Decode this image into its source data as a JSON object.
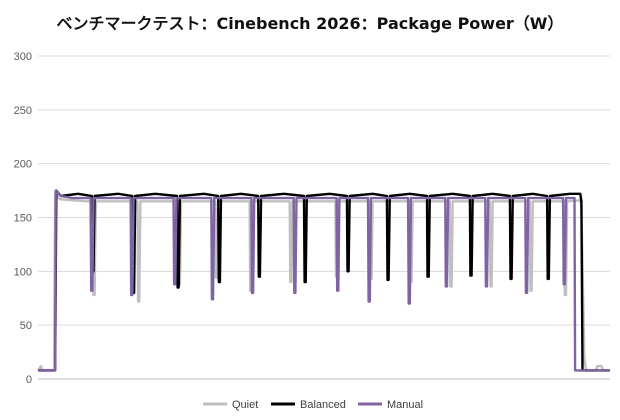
{
  "chart_data": {
    "type": "line",
    "title": "ベンチマークテスト：Cinebench 2026：Package Power（W）",
    "xlabel": "",
    "ylabel": "",
    "ylim": [
      0,
      300
    ],
    "yticks": [
      0,
      50,
      100,
      150,
      200,
      250,
      300
    ],
    "grid": true,
    "legend_position": "bottom",
    "x_range": [
      0,
      1000
    ],
    "series": [
      {
        "name": "Quiet",
        "color": "#bfbfbf",
        "points": [
          [
            0,
            8
          ],
          [
            5,
            12
          ],
          [
            8,
            8
          ],
          [
            28,
            8
          ],
          [
            30,
            172
          ],
          [
            38,
            167
          ],
          [
            60,
            166
          ],
          [
            85,
            165
          ],
          [
            96,
            165
          ],
          [
            97,
            78
          ],
          [
            99,
            78
          ],
          [
            101,
            165
          ],
          [
            135,
            165
          ],
          [
            170,
            165
          ],
          [
            174,
            165
          ],
          [
            175,
            72
          ],
          [
            177,
            72
          ],
          [
            179,
            165
          ],
          [
            215,
            165
          ],
          [
            245,
            165
          ],
          [
            246,
            88
          ],
          [
            248,
            88
          ],
          [
            250,
            165
          ],
          [
            290,
            165
          ],
          [
            310,
            165
          ],
          [
            311,
            94
          ],
          [
            313,
            94
          ],
          [
            315,
            165
          ],
          [
            350,
            165
          ],
          [
            370,
            165
          ],
          [
            371,
            82
          ],
          [
            373,
            82
          ],
          [
            375,
            165
          ],
          [
            405,
            165
          ],
          [
            440,
            165
          ],
          [
            441,
            90
          ],
          [
            443,
            90
          ],
          [
            445,
            165
          ],
          [
            485,
            165
          ],
          [
            520,
            165
          ],
          [
            521,
            95
          ],
          [
            523,
            95
          ],
          [
            525,
            165
          ],
          [
            555,
            165
          ],
          [
            580,
            165
          ],
          [
            581,
            93
          ],
          [
            583,
            93
          ],
          [
            585,
            165
          ],
          [
            625,
            165
          ],
          [
            650,
            165
          ],
          [
            651,
            90
          ],
          [
            653,
            90
          ],
          [
            655,
            165
          ],
          [
            690,
            165
          ],
          [
            720,
            165
          ],
          [
            721,
            86
          ],
          [
            723,
            86
          ],
          [
            725,
            165
          ],
          [
            765,
            165
          ],
          [
            790,
            165
          ],
          [
            791,
            86
          ],
          [
            793,
            86
          ],
          [
            795,
            165
          ],
          [
            830,
            165
          ],
          [
            860,
            165
          ],
          [
            861,
            82
          ],
          [
            863,
            82
          ],
          [
            865,
            165
          ],
          [
            895,
            165
          ],
          [
            920,
            165
          ],
          [
            921,
            78
          ],
          [
            923,
            78
          ],
          [
            925,
            165
          ],
          [
            948,
            166
          ],
          [
            950,
            160
          ],
          [
            955,
            20
          ],
          [
            958,
            8
          ],
          [
            975,
            8
          ],
          [
            978,
            12
          ],
          [
            985,
            12
          ],
          [
            988,
            8
          ],
          [
            1000,
            8
          ]
        ]
      },
      {
        "name": "Balanced",
        "color": "#000000",
        "points": [
          [
            0,
            8
          ],
          [
            30,
            8
          ],
          [
            32,
            175
          ],
          [
            40,
            170
          ],
          [
            70,
            172
          ],
          [
            94,
            170
          ],
          [
            95,
            100
          ],
          [
            97,
            100
          ],
          [
            99,
            170
          ],
          [
            140,
            172
          ],
          [
            165,
            170
          ],
          [
            166,
            80
          ],
          [
            168,
            80
          ],
          [
            170,
            170
          ],
          [
            205,
            172
          ],
          [
            243,
            170
          ],
          [
            244,
            85
          ],
          [
            246,
            85
          ],
          [
            248,
            170
          ],
          [
            290,
            172
          ],
          [
            315,
            170
          ],
          [
            316,
            90
          ],
          [
            318,
            90
          ],
          [
            320,
            170
          ],
          [
            355,
            172
          ],
          [
            385,
            170
          ],
          [
            386,
            95
          ],
          [
            388,
            95
          ],
          [
            390,
            170
          ],
          [
            430,
            172
          ],
          [
            465,
            170
          ],
          [
            466,
            90
          ],
          [
            468,
            90
          ],
          [
            470,
            170
          ],
          [
            510,
            172
          ],
          [
            540,
            170
          ],
          [
            541,
            100
          ],
          [
            543,
            100
          ],
          [
            545,
            170
          ],
          [
            585,
            172
          ],
          [
            610,
            170
          ],
          [
            611,
            92
          ],
          [
            613,
            92
          ],
          [
            615,
            170
          ],
          [
            650,
            172
          ],
          [
            680,
            170
          ],
          [
            681,
            95
          ],
          [
            683,
            95
          ],
          [
            685,
            170
          ],
          [
            725,
            172
          ],
          [
            755,
            170
          ],
          [
            756,
            96
          ],
          [
            758,
            96
          ],
          [
            760,
            170
          ],
          [
            795,
            172
          ],
          [
            825,
            170
          ],
          [
            826,
            93
          ],
          [
            828,
            93
          ],
          [
            830,
            170
          ],
          [
            865,
            172
          ],
          [
            890,
            170
          ],
          [
            891,
            93
          ],
          [
            893,
            93
          ],
          [
            895,
            170
          ],
          [
            930,
            172
          ],
          [
            948,
            172
          ],
          [
            950,
            165
          ],
          [
            952,
            8
          ],
          [
            1000,
            8
          ]
        ]
      },
      {
        "name": "Manual",
        "color": "#7f63a3",
        "points": [
          [
            0,
            8
          ],
          [
            30,
            8
          ],
          [
            31,
            175
          ],
          [
            40,
            170
          ],
          [
            60,
            168
          ],
          [
            92,
            168
          ],
          [
            93,
            82
          ],
          [
            95,
            82
          ],
          [
            97,
            168
          ],
          [
            130,
            168
          ],
          [
            162,
            168
          ],
          [
            163,
            78
          ],
          [
            165,
            78
          ],
          [
            167,
            168
          ],
          [
            200,
            168
          ],
          [
            237,
            168
          ],
          [
            238,
            88
          ],
          [
            240,
            88
          ],
          [
            242,
            168
          ],
          [
            275,
            168
          ],
          [
            303,
            168
          ],
          [
            304,
            74
          ],
          [
            306,
            74
          ],
          [
            308,
            168
          ],
          [
            340,
            168
          ],
          [
            373,
            168
          ],
          [
            374,
            80
          ],
          [
            376,
            80
          ],
          [
            378,
            168
          ],
          [
            412,
            168
          ],
          [
            447,
            168
          ],
          [
            448,
            80
          ],
          [
            450,
            80
          ],
          [
            452,
            168
          ],
          [
            487,
            168
          ],
          [
            522,
            168
          ],
          [
            523,
            82
          ],
          [
            525,
            82
          ],
          [
            527,
            168
          ],
          [
            557,
            168
          ],
          [
            577,
            168
          ],
          [
            578,
            72
          ],
          [
            580,
            72
          ],
          [
            582,
            168
          ],
          [
            617,
            168
          ],
          [
            647,
            168
          ],
          [
            648,
            70
          ],
          [
            650,
            70
          ],
          [
            652,
            168
          ],
          [
            687,
            168
          ],
          [
            712,
            168
          ],
          [
            713,
            86
          ],
          [
            715,
            86
          ],
          [
            717,
            168
          ],
          [
            750,
            168
          ],
          [
            782,
            168
          ],
          [
            783,
            86
          ],
          [
            785,
            86
          ],
          [
            787,
            168
          ],
          [
            820,
            168
          ],
          [
            852,
            168
          ],
          [
            853,
            80
          ],
          [
            855,
            80
          ],
          [
            857,
            168
          ],
          [
            890,
            168
          ],
          [
            918,
            168
          ],
          [
            919,
            88
          ],
          [
            921,
            88
          ],
          [
            923,
            168
          ],
          [
            938,
            168
          ],
          [
            939,
            8
          ],
          [
            1000,
            8
          ]
        ]
      }
    ]
  }
}
